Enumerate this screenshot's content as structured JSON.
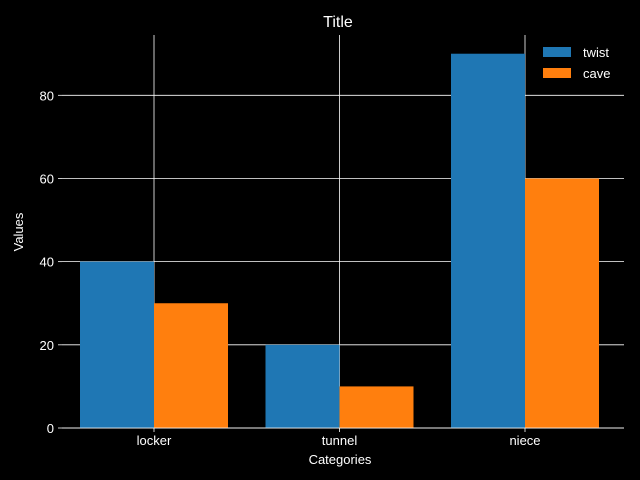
{
  "chart_data": {
    "type": "bar",
    "title": "Title",
    "xlabel": "Categories",
    "ylabel": "Values",
    "categories": [
      "locker",
      "tunnel",
      "niece"
    ],
    "series": [
      {
        "name": "twist",
        "values": [
          40,
          20,
          90
        ],
        "color": "#1f77b4"
      },
      {
        "name": "cave",
        "values": [
          30,
          10,
          60
        ],
        "color": "#ff7f0e"
      }
    ],
    "ylim": [
      0,
      94.5
    ],
    "yticks": [
      0,
      20,
      40,
      60,
      80
    ],
    "grid": true,
    "legend_position": "top-right",
    "colors": {
      "background": "#000000",
      "text": "#ffffff",
      "grid": "#ffffff"
    }
  }
}
